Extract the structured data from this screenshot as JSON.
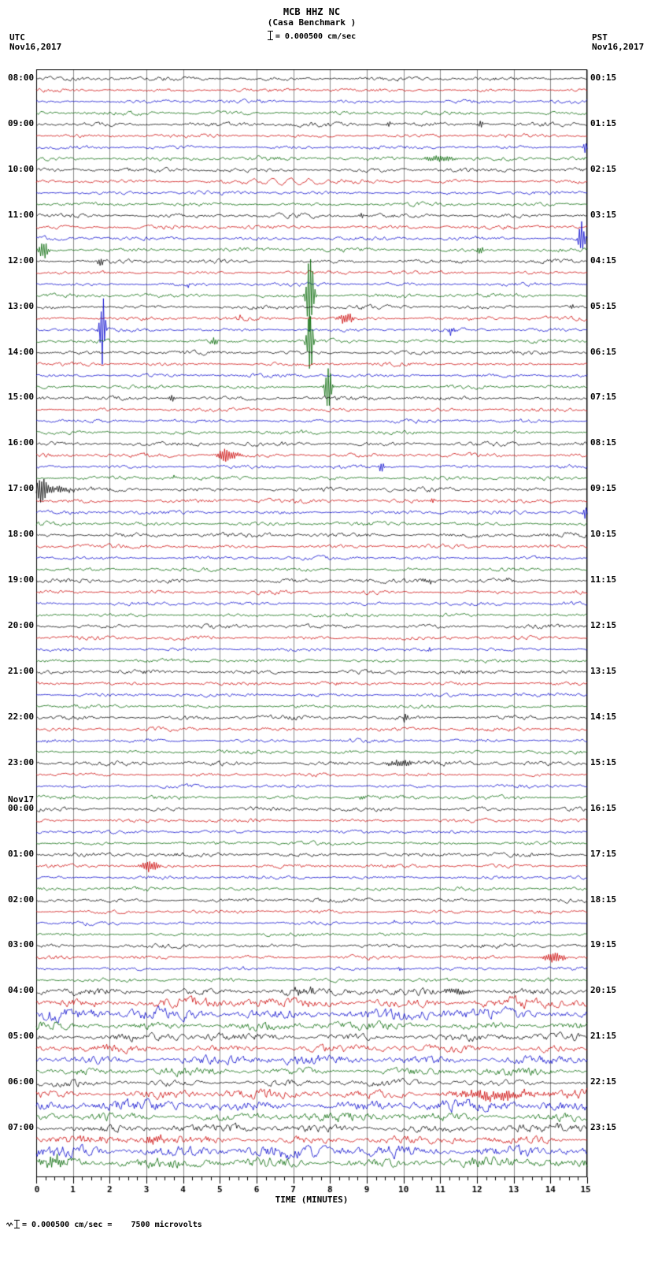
{
  "title": "MCB HHZ NC",
  "subtitle": "(Casa Benchmark )",
  "scale_label": "= 0.000500 cm/sec",
  "header_left": {
    "tz": "UTC",
    "date": "Nov16,2017"
  },
  "header_right": {
    "tz": "PST",
    "date": "Nov16,2017"
  },
  "footer_note": "= 0.000500 cm/sec =    7500 microvolts",
  "chart_data": {
    "type": "line",
    "title": "MCB HHZ NC (Casa Benchmark) helicorder",
    "xlabel": "TIME (MINUTES)",
    "x_min": 0,
    "x_max": 15,
    "x_ticks": [
      0,
      1,
      2,
      3,
      4,
      5,
      6,
      7,
      8,
      9,
      10,
      11,
      12,
      13,
      14,
      15
    ],
    "minutes_per_row": 15,
    "colors": {
      "black": "#000000",
      "red": "#cc0000",
      "blue": "#0000cc",
      "green": "#006600"
    },
    "rows": [
      {
        "c": "black",
        "l": "08:00",
        "r": "00:15",
        "a": 1.1,
        "e": []
      },
      {
        "c": "red",
        "l": "",
        "r": "",
        "a": 1.0,
        "e": []
      },
      {
        "c": "blue",
        "l": "",
        "r": "",
        "a": 1.0,
        "e": []
      },
      {
        "c": "green",
        "l": "",
        "r": "",
        "a": 1.1,
        "e": []
      },
      {
        "c": "black",
        "l": "09:00",
        "r": "01:15",
        "a": 1.3,
        "e": [
          {
            "m": 9.6,
            "a": 4,
            "w": 0.06
          },
          {
            "m": 12.1,
            "a": 5,
            "w": 0.06
          }
        ]
      },
      {
        "c": "red",
        "l": "",
        "r": "",
        "a": 1.0,
        "e": []
      },
      {
        "c": "blue",
        "l": "",
        "r": "",
        "a": 1.0,
        "e": [
          {
            "m": 14.95,
            "a": 8,
            "w": 0.05
          }
        ]
      },
      {
        "c": "green",
        "l": "",
        "r": "",
        "a": 1.2,
        "e": [
          {
            "m": 11.0,
            "a": 4,
            "w": 0.45
          }
        ]
      },
      {
        "c": "black",
        "l": "10:00",
        "r": "02:15",
        "a": 1.2,
        "e": []
      },
      {
        "c": "red",
        "l": "",
        "r": "",
        "a": 1.1,
        "e": [
          {
            "m": 6.8,
            "a": 4,
            "w": 1.6,
            "f": 2
          }
        ]
      },
      {
        "c": "blue",
        "l": "",
        "r": "",
        "a": 1.0,
        "e": []
      },
      {
        "c": "green",
        "l": "",
        "r": "",
        "a": 1.0,
        "e": []
      },
      {
        "c": "black",
        "l": "11:00",
        "r": "03:15",
        "a": 1.2,
        "e": [
          {
            "m": 8.85,
            "a": 4,
            "w": 0.06
          }
        ]
      },
      {
        "c": "red",
        "l": "",
        "r": "",
        "a": 1.1,
        "e": []
      },
      {
        "c": "blue",
        "l": "",
        "r": "",
        "a": 1.1,
        "e": [
          {
            "m": 14.85,
            "a": 25,
            "w": 0.08
          }
        ]
      },
      {
        "c": "green",
        "l": "",
        "r": "",
        "a": 1.2,
        "e": [
          {
            "m": 0.2,
            "a": 14,
            "w": 0.12
          },
          {
            "m": 12.1,
            "a": 5,
            "w": 0.08
          }
        ]
      },
      {
        "c": "black",
        "l": "12:00",
        "r": "04:15",
        "a": 1.2,
        "e": [
          {
            "m": 1.75,
            "a": 6,
            "w": 0.07
          }
        ]
      },
      {
        "c": "red",
        "l": "",
        "r": "",
        "a": 1.0,
        "e": []
      },
      {
        "c": "blue",
        "l": "",
        "r": "",
        "a": 1.0,
        "e": [
          {
            "m": 4.1,
            "a": 3,
            "w": 0.05
          }
        ]
      },
      {
        "c": "green",
        "l": "",
        "r": "",
        "a": 1.1,
        "e": [
          {
            "m": 7.45,
            "a": 60,
            "w": 0.1
          }
        ]
      },
      {
        "c": "black",
        "l": "13:00",
        "r": "05:15",
        "a": 1.2,
        "e": [
          {
            "m": 14.6,
            "a": 3,
            "w": 0.06
          }
        ]
      },
      {
        "c": "red",
        "l": "",
        "r": "",
        "a": 1.1,
        "e": [
          {
            "m": 5.55,
            "a": 4,
            "w": 0.06
          },
          {
            "m": 8.45,
            "a": 8,
            "w": 0.2
          }
        ]
      },
      {
        "c": "blue",
        "l": "",
        "r": "",
        "a": 1.0,
        "e": [
          {
            "m": 1.8,
            "a": 48,
            "w": 0.08
          },
          {
            "m": 11.3,
            "a": 7,
            "w": 0.07
          }
        ]
      },
      {
        "c": "green",
        "l": "",
        "r": "",
        "a": 1.1,
        "e": [
          {
            "m": 4.85,
            "a": 6,
            "w": 0.08
          },
          {
            "m": 7.45,
            "a": 45,
            "w": 0.08
          }
        ]
      },
      {
        "c": "black",
        "l": "14:00",
        "r": "06:15",
        "a": 1.1,
        "e": []
      },
      {
        "c": "red",
        "l": "",
        "r": "",
        "a": 1.0,
        "e": []
      },
      {
        "c": "blue",
        "l": "",
        "r": "",
        "a": 1.0,
        "e": []
      },
      {
        "c": "green",
        "l": "",
        "r": "",
        "a": 1.0,
        "e": [
          {
            "m": 7.95,
            "a": 32,
            "w": 0.09
          }
        ]
      },
      {
        "c": "black",
        "l": "15:00",
        "r": "07:15",
        "a": 1.2,
        "e": [
          {
            "m": 3.7,
            "a": 5,
            "w": 0.07
          }
        ]
      },
      {
        "c": "red",
        "l": "",
        "r": "",
        "a": 1.0,
        "e": []
      },
      {
        "c": "blue",
        "l": "",
        "r": "",
        "a": 1.0,
        "e": []
      },
      {
        "c": "green",
        "l": "",
        "r": "",
        "a": 1.1,
        "e": []
      },
      {
        "c": "black",
        "l": "16:00",
        "r": "08:15",
        "a": 1.3,
        "e": []
      },
      {
        "c": "red",
        "l": "",
        "r": "",
        "a": 1.1,
        "e": [
          {
            "m": 5.2,
            "a": 10,
            "w": 0.25
          }
        ]
      },
      {
        "c": "blue",
        "l": "",
        "r": "",
        "a": 1.0,
        "e": [
          {
            "m": 9.4,
            "a": 8,
            "w": 0.07
          }
        ]
      },
      {
        "c": "green",
        "l": "",
        "r": "",
        "a": 1.1,
        "e": [
          {
            "m": 3.75,
            "a": 3,
            "w": 0.06
          }
        ]
      },
      {
        "c": "black",
        "l": "17:00",
        "r": "09:15",
        "a": 1.3,
        "e": [
          {
            "m": 0.15,
            "a": 16,
            "w": 0.15
          },
          {
            "m": 0.6,
            "a": 4,
            "w": 0.4
          }
        ]
      },
      {
        "c": "red",
        "l": "",
        "r": "",
        "a": 1.2,
        "e": [
          {
            "m": 10.8,
            "a": 3,
            "w": 0.06
          }
        ]
      },
      {
        "c": "blue",
        "l": "",
        "r": "",
        "a": 1.1,
        "e": [
          {
            "m": 14.95,
            "a": 8,
            "w": 0.06
          }
        ]
      },
      {
        "c": "green",
        "l": "",
        "r": "",
        "a": 1.1,
        "e": []
      },
      {
        "c": "black",
        "l": "18:00",
        "r": "10:15",
        "a": 1.3,
        "e": []
      },
      {
        "c": "red",
        "l": "",
        "r": "",
        "a": 1.1,
        "e": []
      },
      {
        "c": "blue",
        "l": "",
        "r": "",
        "a": 1.0,
        "e": []
      },
      {
        "c": "green",
        "l": "",
        "r": "",
        "a": 1.0,
        "e": []
      },
      {
        "c": "black",
        "l": "19:00",
        "r": "11:15",
        "a": 1.3,
        "e": [
          {
            "m": 10.7,
            "a": 3,
            "w": 0.2
          },
          {
            "m": 12.85,
            "a": 2.5,
            "w": 0.05
          }
        ]
      },
      {
        "c": "red",
        "l": "",
        "r": "",
        "a": 1.2,
        "e": []
      },
      {
        "c": "blue",
        "l": "",
        "r": "",
        "a": 1.0,
        "e": []
      },
      {
        "c": "green",
        "l": "",
        "r": "",
        "a": 1.0,
        "e": []
      },
      {
        "c": "black",
        "l": "20:00",
        "r": "12:15",
        "a": 1.2,
        "e": []
      },
      {
        "c": "red",
        "l": "",
        "r": "",
        "a": 1.1,
        "e": []
      },
      {
        "c": "blue",
        "l": "",
        "r": "",
        "a": 1.0,
        "e": [
          {
            "m": 10.7,
            "a": 3.5,
            "w": 0.06
          }
        ]
      },
      {
        "c": "green",
        "l": "",
        "r": "",
        "a": 1.0,
        "e": []
      },
      {
        "c": "black",
        "l": "21:00",
        "r": "13:15",
        "a": 1.2,
        "e": []
      },
      {
        "c": "red",
        "l": "",
        "r": "",
        "a": 1.1,
        "e": []
      },
      {
        "c": "blue",
        "l": "",
        "r": "",
        "a": 1.0,
        "e": [
          {
            "m": 7.5,
            "a": 2.5,
            "w": 0.05
          }
        ]
      },
      {
        "c": "green",
        "l": "",
        "r": "",
        "a": 1.0,
        "e": []
      },
      {
        "c": "black",
        "l": "22:00",
        "r": "14:15",
        "a": 1.3,
        "e": [
          {
            "m": 10.05,
            "a": 6,
            "w": 0.06
          }
        ]
      },
      {
        "c": "red",
        "l": "",
        "r": "",
        "a": 1.1,
        "e": []
      },
      {
        "c": "blue",
        "l": "",
        "r": "",
        "a": 1.0,
        "e": []
      },
      {
        "c": "green",
        "l": "",
        "r": "",
        "a": 1.0,
        "e": []
      },
      {
        "c": "black",
        "l": "23:00",
        "r": "15:15",
        "a": 1.3,
        "e": [
          {
            "m": 9.9,
            "a": 5,
            "w": 0.35
          }
        ]
      },
      {
        "c": "red",
        "l": "",
        "r": "",
        "a": 1.0,
        "e": []
      },
      {
        "c": "blue",
        "l": "",
        "r": "",
        "a": 1.0,
        "e": []
      },
      {
        "c": "green",
        "l": "",
        "r": "",
        "a": 1.1,
        "e": [
          {
            "m": 8.9,
            "a": 3,
            "w": 0.1
          }
        ]
      },
      {
        "c": "black",
        "l": "Nov17|00:00",
        "r": "16:15",
        "a": 1.2,
        "e": []
      },
      {
        "c": "red",
        "l": "",
        "r": "",
        "a": 1.0,
        "e": []
      },
      {
        "c": "blue",
        "l": "",
        "r": "",
        "a": 1.0,
        "e": []
      },
      {
        "c": "green",
        "l": "",
        "r": "",
        "a": 1.0,
        "e": []
      },
      {
        "c": "black",
        "l": "01:00",
        "r": "17:15",
        "a": 1.2,
        "e": []
      },
      {
        "c": "red",
        "l": "",
        "r": "",
        "a": 1.1,
        "e": [
          {
            "m": 3.1,
            "a": 7,
            "w": 0.25
          }
        ]
      },
      {
        "c": "blue",
        "l": "",
        "r": "",
        "a": 1.0,
        "e": []
      },
      {
        "c": "green",
        "l": "",
        "r": "",
        "a": 1.0,
        "e": []
      },
      {
        "c": "black",
        "l": "02:00",
        "r": "18:15",
        "a": 1.2,
        "e": []
      },
      {
        "c": "red",
        "l": "",
        "r": "",
        "a": 1.0,
        "e": []
      },
      {
        "c": "blue",
        "l": "",
        "r": "",
        "a": 1.0,
        "e": [
          {
            "m": 9.75,
            "a": 3,
            "w": 0.06
          }
        ]
      },
      {
        "c": "green",
        "l": "",
        "r": "",
        "a": 1.0,
        "e": []
      },
      {
        "c": "black",
        "l": "03:00",
        "r": "19:15",
        "a": 1.2,
        "e": []
      },
      {
        "c": "red",
        "l": "",
        "r": "",
        "a": 1.1,
        "e": [
          {
            "m": 14.1,
            "a": 7,
            "w": 0.3
          }
        ]
      },
      {
        "c": "blue",
        "l": "",
        "r": "",
        "a": 1.0,
        "e": [
          {
            "m": 9.9,
            "a": 3,
            "w": 0.06
          }
        ]
      },
      {
        "c": "green",
        "l": "",
        "r": "",
        "a": 1.1,
        "e": []
      },
      {
        "c": "black",
        "l": "04:00",
        "r": "20:15",
        "a": 2.2,
        "e": [
          {
            "m": 7.3,
            "a": 4,
            "w": 0.4
          },
          {
            "m": 11.5,
            "a": 4,
            "w": 0.3
          }
        ]
      },
      {
        "c": "red",
        "l": "",
        "r": "",
        "a": 3.0,
        "e": []
      },
      {
        "c": "blue",
        "l": "",
        "r": "",
        "a": 3.4,
        "e": []
      },
      {
        "c": "green",
        "l": "",
        "r": "",
        "a": 2.4,
        "e": []
      },
      {
        "c": "black",
        "l": "05:00",
        "r": "21:15",
        "a": 2.2,
        "e": []
      },
      {
        "c": "red",
        "l": "",
        "r": "",
        "a": 2.2,
        "e": []
      },
      {
        "c": "blue",
        "l": "",
        "r": "",
        "a": 2.6,
        "e": []
      },
      {
        "c": "green",
        "l": "",
        "r": "",
        "a": 2.2,
        "e": []
      },
      {
        "c": "black",
        "l": "06:00",
        "r": "22:15",
        "a": 1.8,
        "e": []
      },
      {
        "c": "red",
        "l": "",
        "r": "",
        "a": 2.6,
        "e": [
          {
            "m": 12.5,
            "a": 5,
            "w": 1.2
          }
        ]
      },
      {
        "c": "blue",
        "l": "",
        "r": "",
        "a": 3.2,
        "e": []
      },
      {
        "c": "green",
        "l": "",
        "r": "",
        "a": 2.6,
        "e": []
      },
      {
        "c": "black",
        "l": "07:00",
        "r": "23:15",
        "a": 2.4,
        "e": []
      },
      {
        "c": "red",
        "l": "",
        "r": "",
        "a": 2.4,
        "e": [
          {
            "m": 3.2,
            "a": 4,
            "w": 0.3
          }
        ]
      },
      {
        "c": "blue",
        "l": "",
        "r": "",
        "a": 3.6,
        "e": []
      },
      {
        "c": "green",
        "l": "",
        "r": "",
        "a": 3.0,
        "e": [
          {
            "m": 0.5,
            "a": 6,
            "w": 0.4
          }
        ]
      }
    ]
  }
}
